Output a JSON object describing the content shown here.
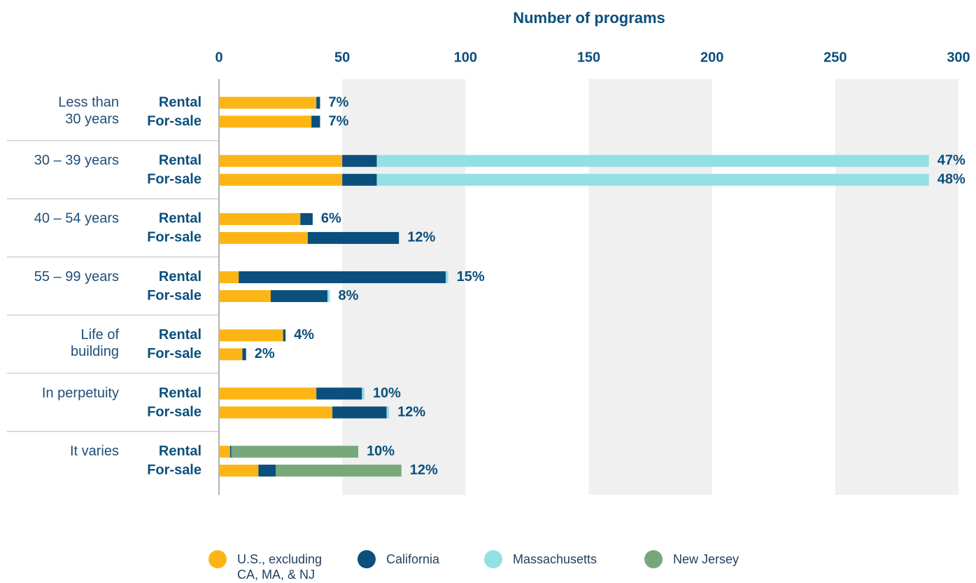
{
  "chart_data": {
    "type": "stacked-bar-horizontal",
    "title": "Number of programs",
    "groups": [
      [
        "Less than",
        "30 years"
      ],
      [
        "30 – 39 years"
      ],
      [
        "40 – 54 years"
      ],
      [
        "55 – 99 years"
      ],
      [
        "Life of",
        "building"
      ],
      [
        "In perpetuity"
      ],
      [
        "It varies"
      ]
    ],
    "subcategories": [
      "Rental",
      "For-sale"
    ],
    "xlim": [
      0,
      300
    ],
    "xticks": [
      0,
      50,
      100,
      150,
      200,
      250,
      300
    ],
    "series": [
      {
        "name": "U.S., excluding CA, MA, & NJ",
        "color": "#FDB515",
        "values": [
          39.5,
          37.5,
          50,
          50,
          33,
          36,
          8,
          21,
          26,
          9.5,
          39.5,
          46,
          4.5,
          16
        ]
      },
      {
        "name": "California",
        "color": "#0B4F7C",
        "values": [
          1.5,
          3.5,
          14,
          14,
          5,
          37,
          84,
          23,
          1,
          1.5,
          18.5,
          22,
          0.5,
          7
        ]
      },
      {
        "name": "Massachusetts",
        "color": "#92E0E3",
        "values": [
          0,
          0,
          224,
          224,
          0,
          0,
          1,
          1,
          0,
          0,
          1,
          1,
          0,
          0
        ]
      },
      {
        "name": "New Jersey",
        "color": "#78A87A",
        "values": [
          0,
          0,
          0,
          0,
          0,
          0,
          0,
          0,
          0,
          0,
          0,
          0,
          51.5,
          51
        ]
      }
    ],
    "percent_labels": [
      "7%",
      "7%",
      "47%",
      "48%",
      "6%",
      "12%",
      "15%",
      "8%",
      "4%",
      "2%",
      "10%",
      "12%",
      "10%",
      "12%"
    ]
  }
}
